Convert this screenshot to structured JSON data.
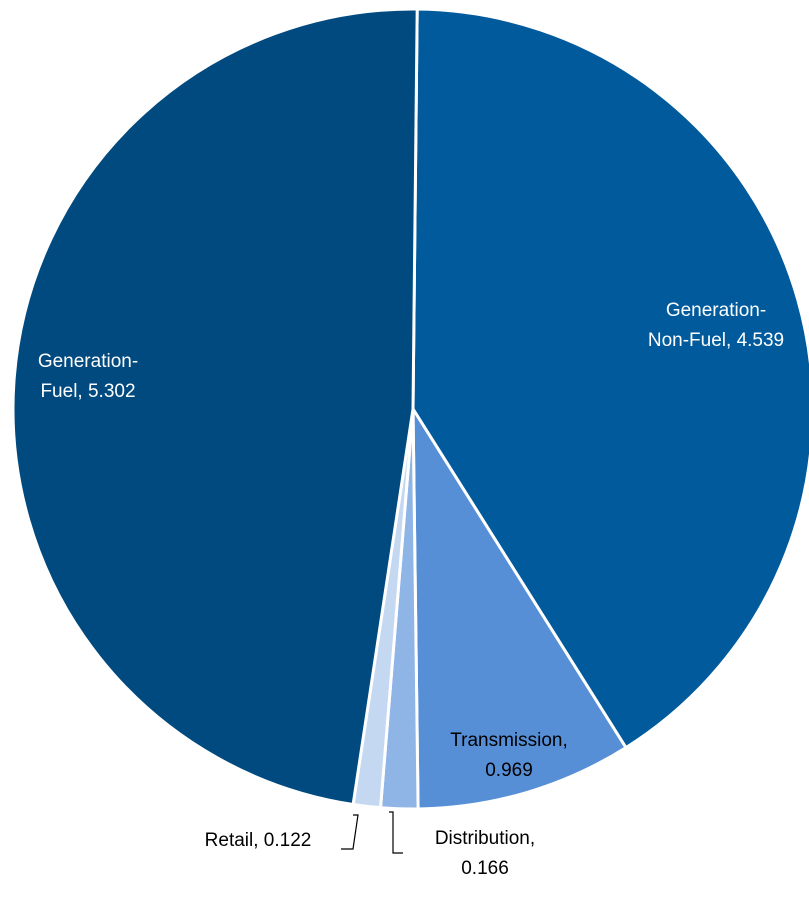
{
  "chart_data": {
    "type": "pie",
    "title": "",
    "slices": [
      {
        "name": "Generation-Non-Fuel",
        "value": 4.539,
        "color": "#005a9c",
        "label_lines": [
          "Generation-",
          "Non-Fuel,  4.539"
        ],
        "label_color": "light",
        "leader": false
      },
      {
        "name": "Transmission",
        "value": 0.969,
        "color": "#568fd6",
        "label_lines": [
          "Transmission,",
          "0.969"
        ],
        "label_color": "dark",
        "leader": false
      },
      {
        "name": "Distribution",
        "value": 0.166,
        "color": "#8fb4e6",
        "label_lines": [
          "Distribution,",
          "0.166"
        ],
        "label_color": "dark",
        "leader": true
      },
      {
        "name": "Retail",
        "value": 0.122,
        "color": "#c5d8f2",
        "label_lines": [
          "Retail,  0.122"
        ],
        "label_color": "dark",
        "leader": true
      },
      {
        "name": "Generation-Fuel",
        "value": 5.302,
        "color": "#004a7f",
        "label_lines": [
          "Generation-",
          "Fuel,  5.302"
        ],
        "label_color": "light",
        "leader": false
      }
    ]
  }
}
